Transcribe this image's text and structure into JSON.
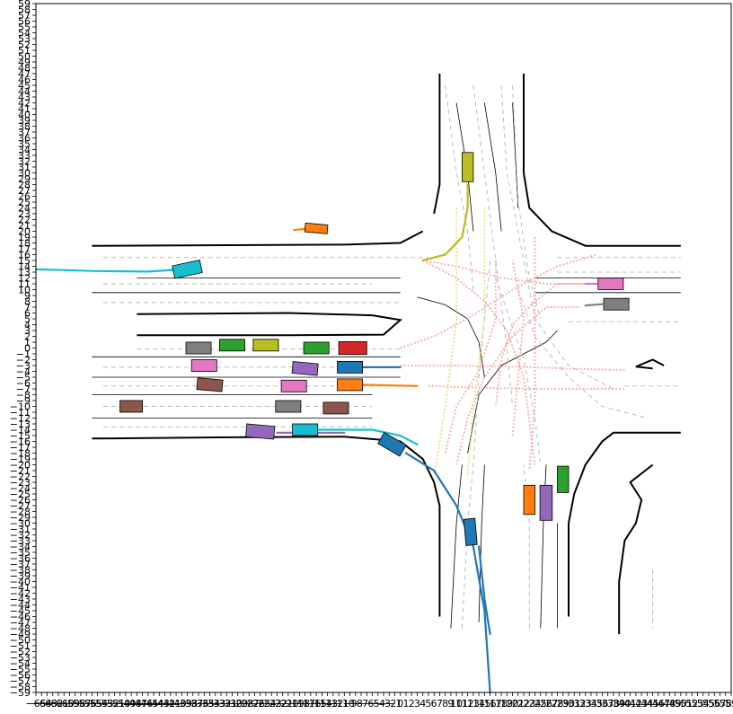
{
  "figure": {
    "x_range": [
      -65,
      59
    ],
    "y_range": [
      -59,
      59
    ],
    "x_ticks_shown": "-65..59 step 1 (overlapping, unreadable)",
    "y_ticks_shown": "-59..59 step 1"
  },
  "colors": {
    "road_edge": "#000000",
    "lane_line": "#000000",
    "lane_dash": "#bbbbbb",
    "blue": "#1f77b4",
    "orange": "#ff7f0e",
    "green": "#2ca02c",
    "red": "#d62728",
    "purple": "#9467bd",
    "brown": "#8c564b",
    "pink": "#e377c2",
    "gray": "#7f7f7f",
    "olive": "#bcbd22",
    "cyan": "#17becf"
  },
  "scene": {
    "agents": [
      {
        "id": "a1",
        "color": "gray",
        "x": -36,
        "y": 0,
        "w": 4.5,
        "h": 2,
        "rot": 0
      },
      {
        "id": "a2",
        "color": "green",
        "x": -30,
        "y": 0.5,
        "w": 4.5,
        "h": 2,
        "rot": 0
      },
      {
        "id": "a3",
        "color": "olive",
        "x": -24,
        "y": 0.5,
        "w": 4.5,
        "h": 2,
        "rot": 0
      },
      {
        "id": "a4",
        "color": "green",
        "x": -15,
        "y": 0,
        "w": 4.5,
        "h": 2,
        "rot": 0
      },
      {
        "id": "a5",
        "color": "red",
        "x": -8.5,
        "y": 0,
        "w": 5,
        "h": 2.2,
        "rot": 0
      },
      {
        "id": "a6",
        "color": "pink",
        "x": -35,
        "y": -3,
        "w": 4.5,
        "h": 2,
        "rot": 0
      },
      {
        "id": "a7",
        "color": "purple",
        "x": -17,
        "y": -3.5,
        "w": 4.5,
        "h": 2,
        "rot": -5
      },
      {
        "id": "a8",
        "color": "blue",
        "x": -9,
        "y": -3.3,
        "w": 4.5,
        "h": 2,
        "rot": 0
      },
      {
        "id": "a9",
        "color": "brown",
        "x": -34,
        "y": -6.3,
        "w": 4.5,
        "h": 2,
        "rot": -5
      },
      {
        "id": "a10",
        "color": "pink",
        "x": -19,
        "y": -6.5,
        "w": 4.5,
        "h": 2,
        "rot": 0
      },
      {
        "id": "a11",
        "color": "orange",
        "x": -9,
        "y": -6.3,
        "w": 4.5,
        "h": 2,
        "rot": 0
      },
      {
        "id": "a12",
        "color": "brown",
        "x": -48,
        "y": -10,
        "w": 4,
        "h": 2,
        "rot": 0
      },
      {
        "id": "a13",
        "color": "gray",
        "x": -20,
        "y": -10,
        "w": 4.5,
        "h": 2,
        "rot": 0
      },
      {
        "id": "a14",
        "color": "brown",
        "x": -11.5,
        "y": -10.3,
        "w": 4.5,
        "h": 2,
        "rot": 0
      },
      {
        "id": "a15",
        "color": "purple",
        "x": -25,
        "y": -14.3,
        "w": 5,
        "h": 2.2,
        "rot": -5
      },
      {
        "id": "a16",
        "color": "cyan",
        "x": -17,
        "y": -14,
        "w": 4.5,
        "h": 2,
        "rot": 0
      },
      {
        "id": "a17",
        "color": "blue",
        "x": -1.5,
        "y": -16.5,
        "w": 4.5,
        "h": 2.2,
        "rot": -30
      },
      {
        "id": "a18",
        "color": "cyan",
        "x": -38,
        "y": 13.5,
        "w": 5,
        "h": 2.2,
        "rot": 12
      },
      {
        "id": "a19",
        "color": "orange",
        "x": -15,
        "y": 20.5,
        "w": 4,
        "h": 1.5,
        "rot": -5
      },
      {
        "id": "a20",
        "color": "olive",
        "x": 12,
        "y": 31,
        "w": 2,
        "h": 5,
        "rot": 0
      },
      {
        "id": "a21",
        "color": "pink",
        "x": 37.5,
        "y": 11,
        "w": 4.5,
        "h": 2,
        "rot": 0
      },
      {
        "id": "a22",
        "color": "gray",
        "x": 38.5,
        "y": 7.5,
        "w": 4.5,
        "h": 2,
        "rot": 0
      },
      {
        "id": "a23",
        "color": "orange",
        "x": 23,
        "y": -26,
        "w": 2,
        "h": 5,
        "rot": 0
      },
      {
        "id": "a24",
        "color": "purple",
        "x": 26,
        "y": -26.5,
        "w": 2.2,
        "h": 6,
        "rot": 0
      },
      {
        "id": "a25",
        "color": "green",
        "x": 29,
        "y": -22.5,
        "w": 2,
        "h": 4.5,
        "rot": 0
      },
      {
        "id": "a26",
        "color": "blue",
        "x": 12.5,
        "y": -31.5,
        "w": 2,
        "h": 4.5,
        "rot": 5
      }
    ],
    "trajectories": [
      {
        "color": "cyan",
        "pts": [
          [
            -65,
            13.5
          ],
          [
            -55,
            13.2
          ],
          [
            -45,
            13.1
          ],
          [
            -40,
            13.4
          ]
        ]
      },
      {
        "color": "orange",
        "pts": [
          [
            -19,
            20.2
          ],
          [
            -17,
            20.4
          ]
        ]
      },
      {
        "color": "olive",
        "pts": [
          [
            12,
            28
          ],
          [
            12,
            24
          ],
          [
            11,
            19
          ],
          [
            8,
            16
          ],
          [
            4,
            15
          ]
        ]
      },
      {
        "color": "blue",
        "pts": [
          [
            -7,
            -3.3
          ],
          [
            0,
            -3.3
          ]
        ]
      },
      {
        "color": "orange",
        "pts": [
          [
            -7,
            -6.3
          ],
          [
            3,
            -6.5
          ]
        ]
      },
      {
        "color": "purple",
        "pts": [
          [
            -22,
            -14.5
          ],
          [
            -16,
            -14.5
          ],
          [
            -10,
            -14.5
          ]
        ]
      },
      {
        "color": "cyan",
        "pts": [
          [
            -15,
            -14
          ],
          [
            -5,
            -14
          ],
          [
            0,
            -15
          ],
          [
            3,
            -16.5
          ]
        ]
      },
      {
        "color": "blue",
        "pts": [
          [
            1,
            -18
          ],
          [
            6,
            -21
          ],
          [
            10,
            -27
          ],
          [
            13,
            -34
          ],
          [
            15,
            -45
          ],
          [
            16,
            -59
          ]
        ]
      },
      {
        "color": "blue",
        "pts": [
          [
            14,
            -34
          ],
          [
            15,
            -43
          ],
          [
            16,
            -49
          ]
        ]
      },
      {
        "color": "pink",
        "pts": [
          [
            35,
            11
          ],
          [
            33,
            11
          ]
        ]
      },
      {
        "color": "gray",
        "pts": [
          [
            36,
            7.5
          ],
          [
            33,
            7.3
          ]
        ]
      }
    ]
  }
}
